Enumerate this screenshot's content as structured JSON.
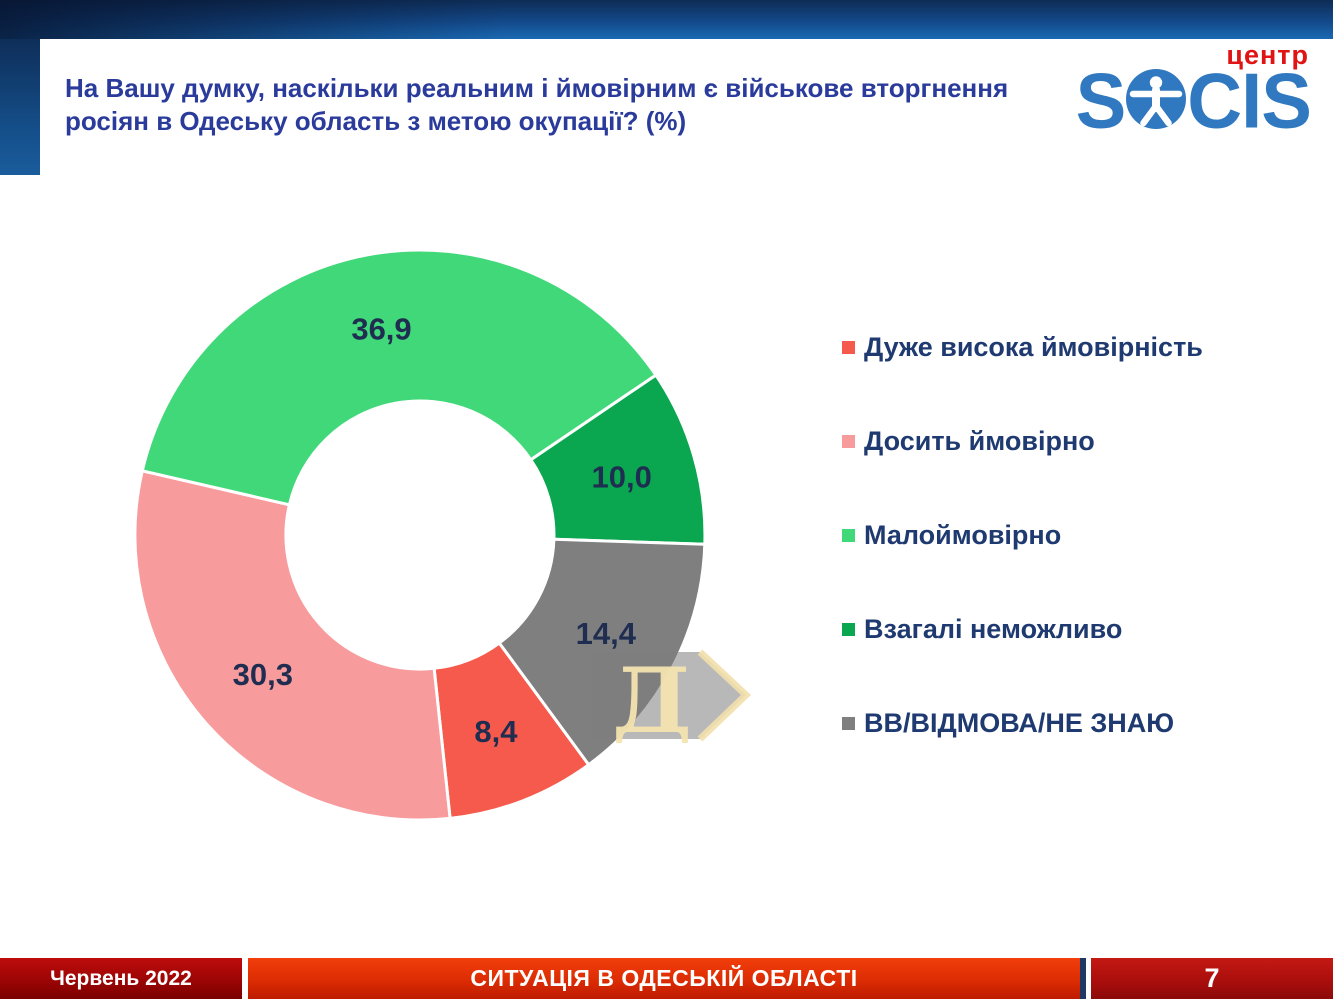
{
  "header": {
    "title_line1": "На Вашу думку, наскільки реальним і ймовірним є військове вторгнення",
    "title_line2": "росіян в Одеську область з метою окупації? (%)",
    "title_color": "#2a3b9b"
  },
  "logo": {
    "top_label": "центр",
    "top_label_color": "#e01315",
    "text_left": "S",
    "text_right": "CIS",
    "brand_color": "#3079c1",
    "person_icon": "vitruvian-man-icon"
  },
  "chart_data": {
    "type": "pie",
    "subtype": "donut",
    "unit": "%",
    "categories": [
      "Дуже висока ймовірність",
      "Досить ймовірно",
      "Малоймовірно",
      "Взагалі неможливо",
      "ВВ/ВІДМОВА/НЕ ЗНАЮ"
    ],
    "values": [
      8.4,
      30.3,
      36.9,
      10.0,
      14.4
    ],
    "display_values": [
      "8,4",
      "30,3",
      "36,9",
      "10,0",
      "14,4"
    ],
    "colors": [
      "#f55a4c",
      "#f89b9d",
      "#41d87a",
      "#0ba750",
      "#7f7f7f"
    ],
    "label_color": "#1e2d50",
    "start_angle_deg": 143.7,
    "direction": "clockwise",
    "inner_radius_ratio": 0.47,
    "legend_position": "right",
    "grid": false
  },
  "watermark": {
    "letter": "Д",
    "letter_color": "#f5e4b0",
    "arrow_color": "#f2e0ac"
  },
  "footer": {
    "date": "Червень 2022",
    "title": "СИТУАЦІЯ В ОДЕСЬКІЙ ОБЛАСТІ",
    "page": "7",
    "date_box_color": "#9c0505",
    "title_box_color": "#dc2c03",
    "page_box_color": "#aa0e0c",
    "divider_color": "#1f3864"
  }
}
